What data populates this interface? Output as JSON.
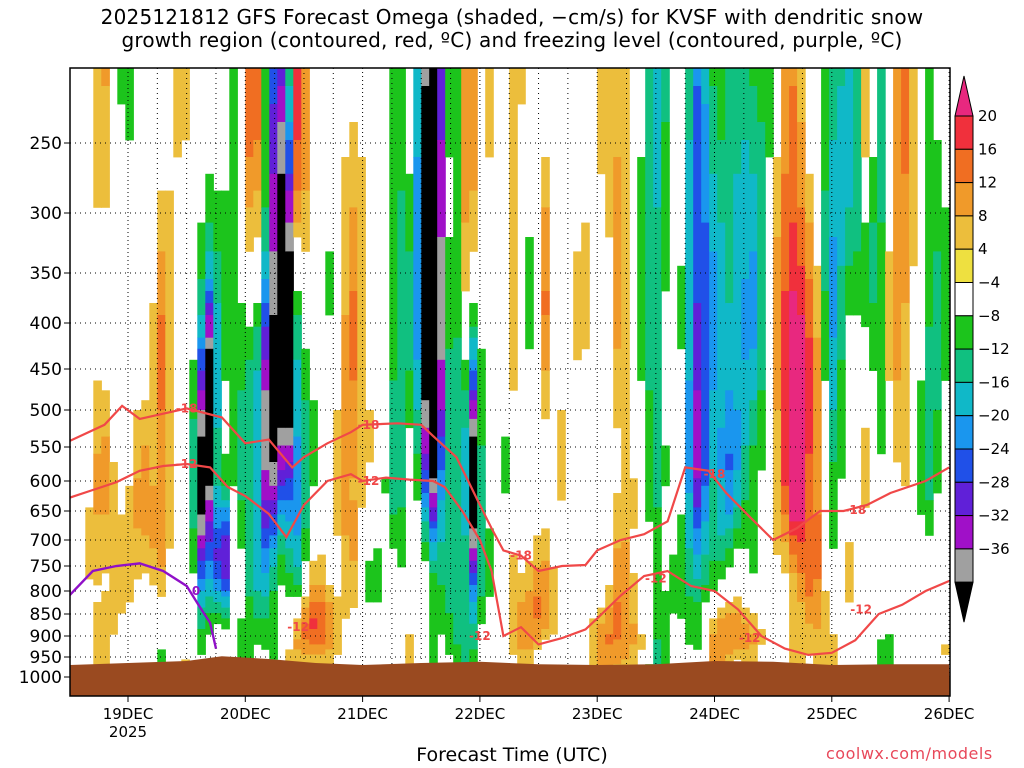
{
  "chart_data": {
    "type": "heatmap",
    "title_line1": "2025121812 GFS Forecast Omega (shaded, −cm/s) for KVSF with dendritic snow",
    "title_line2": "growth region (contoured, red, ºC) and freezing level (contoured, purple, ºC)",
    "xlabel": "Forecast Time (UTC)",
    "ylabel": "",
    "credit": "coolwx.com/models",
    "year_label": "2025",
    "x_ticks": [
      "19DEC",
      "20DEC",
      "21DEC",
      "22DEC",
      "23DEC",
      "24DEC",
      "25DEC",
      "26DEC"
    ],
    "x_range_days": [
      18.5,
      26.0
    ],
    "y_ticks": [
      250,
      300,
      350,
      400,
      450,
      500,
      550,
      600,
      650,
      700,
      750,
      800,
      850,
      900,
      950,
      1000
    ],
    "y_range_hpa": [
      200,
      1000
    ],
    "colorbar_ticks": [
      20,
      16,
      12,
      8,
      4,
      -4,
      -8,
      -12,
      -16,
      -20,
      -24,
      -28,
      -32,
      -36
    ],
    "colorbar_colors": [
      "#e8287f",
      "#f0303c",
      "#f06e22",
      "#f09a2a",
      "#ecbe3c",
      "#eee040",
      "#ffffff",
      "#1cc41c",
      "#10c080",
      "#10b8c8",
      "#1a96ee",
      "#2050e8",
      "#6020d8",
      "#a010c8",
      "#a0a0a0",
      "#000000"
    ],
    "shading_note": "Omega (−cm/s) shaded vs. forecast time and pressure",
    "contours": {
      "dgz_color": "#f04848",
      "dgz_labels": [
        "-18",
        "-12"
      ],
      "freezing_color": "#9010c8",
      "freezing_labels": [
        "0"
      ],
      "dgz_minus18_path": [
        [
          18.5,
          542
        ],
        [
          18.8,
          520
        ],
        [
          18.95,
          495
        ],
        [
          19.1,
          512
        ],
        [
          19.3,
          505
        ],
        [
          19.5,
          498
        ],
        [
          19.8,
          510
        ],
        [
          20.0,
          545
        ],
        [
          20.2,
          540
        ],
        [
          20.4,
          580
        ],
        [
          20.5,
          565
        ],
        [
          20.7,
          545
        ],
        [
          20.9,
          530
        ],
        [
          21.0,
          520
        ],
        [
          21.3,
          518
        ],
        [
          21.5,
          520
        ],
        [
          21.6,
          535
        ],
        [
          21.8,
          565
        ],
        [
          21.9,
          600
        ],
        [
          22.0,
          640
        ],
        [
          22.1,
          680
        ],
        [
          22.2,
          720
        ],
        [
          22.35,
          730
        ],
        [
          22.5,
          760
        ],
        [
          22.7,
          750
        ],
        [
          22.9,
          748
        ],
        [
          23.0,
          720
        ],
        [
          23.2,
          700
        ],
        [
          23.4,
          690
        ],
        [
          23.6,
          668
        ],
        [
          23.75,
          580
        ],
        [
          23.95,
          585
        ],
        [
          24.1,
          620
        ],
        [
          24.3,
          660
        ],
        [
          24.5,
          700
        ],
        [
          24.7,
          680
        ],
        [
          24.9,
          650
        ],
        [
          25.1,
          650
        ],
        [
          25.3,
          640
        ],
        [
          25.5,
          620
        ],
        [
          25.8,
          600
        ],
        [
          26.0,
          580
        ]
      ],
      "dgz_minus12_path": [
        [
          18.5,
          628
        ],
        [
          18.7,
          615
        ],
        [
          18.9,
          602
        ],
        [
          19.1,
          585
        ],
        [
          19.3,
          578
        ],
        [
          19.5,
          575
        ],
        [
          19.7,
          580
        ],
        [
          19.85,
          610
        ],
        [
          20.0,
          625
        ],
        [
          20.2,
          655
        ],
        [
          20.35,
          695
        ],
        [
          20.5,
          640
        ],
        [
          20.7,
          600
        ],
        [
          20.9,
          590
        ],
        [
          21.0,
          600
        ],
        [
          21.2,
          595
        ],
        [
          21.4,
          598
        ],
        [
          21.6,
          600
        ],
        [
          21.7,
          610
        ],
        [
          21.85,
          650
        ],
        [
          22.0,
          700
        ],
        [
          22.1,
          760
        ],
        [
          22.2,
          900
        ],
        [
          22.35,
          880
        ],
        [
          22.5,
          920
        ],
        [
          22.7,
          905
        ],
        [
          22.9,
          885
        ],
        [
          23.0,
          860
        ],
        [
          23.2,
          810
        ],
        [
          23.4,
          770
        ],
        [
          23.6,
          760
        ],
        [
          23.8,
          790
        ],
        [
          24.0,
          800
        ],
        [
          24.2,
          840
        ],
        [
          24.4,
          900
        ],
        [
          24.6,
          930
        ],
        [
          24.8,
          945
        ],
        [
          25.0,
          940
        ],
        [
          25.2,
          910
        ],
        [
          25.4,
          850
        ],
        [
          25.6,
          830
        ],
        [
          25.8,
          800
        ],
        [
          26.0,
          780
        ]
      ],
      "freezing_path": [
        [
          18.5,
          810
        ],
        [
          18.7,
          760
        ],
        [
          18.9,
          750
        ],
        [
          19.1,
          745
        ],
        [
          19.3,
          760
        ],
        [
          19.5,
          790
        ],
        [
          19.6,
          830
        ],
        [
          19.7,
          870
        ],
        [
          19.75,
          930
        ]
      ],
      "surface_pressure": [
        [
          18.5,
          970
        ],
        [
          19.0,
          965
        ],
        [
          19.5,
          960
        ],
        [
          19.8,
          948
        ],
        [
          20.2,
          955
        ],
        [
          20.6,
          965
        ],
        [
          21.0,
          970
        ],
        [
          21.5,
          965
        ],
        [
          22.0,
          962
        ],
        [
          22.5,
          968
        ],
        [
          23.0,
          970
        ],
        [
          23.5,
          968
        ],
        [
          24.0,
          960
        ],
        [
          24.5,
          962
        ],
        [
          25.0,
          970
        ],
        [
          25.5,
          968
        ],
        [
          26.0,
          968
        ]
      ]
    }
  }
}
